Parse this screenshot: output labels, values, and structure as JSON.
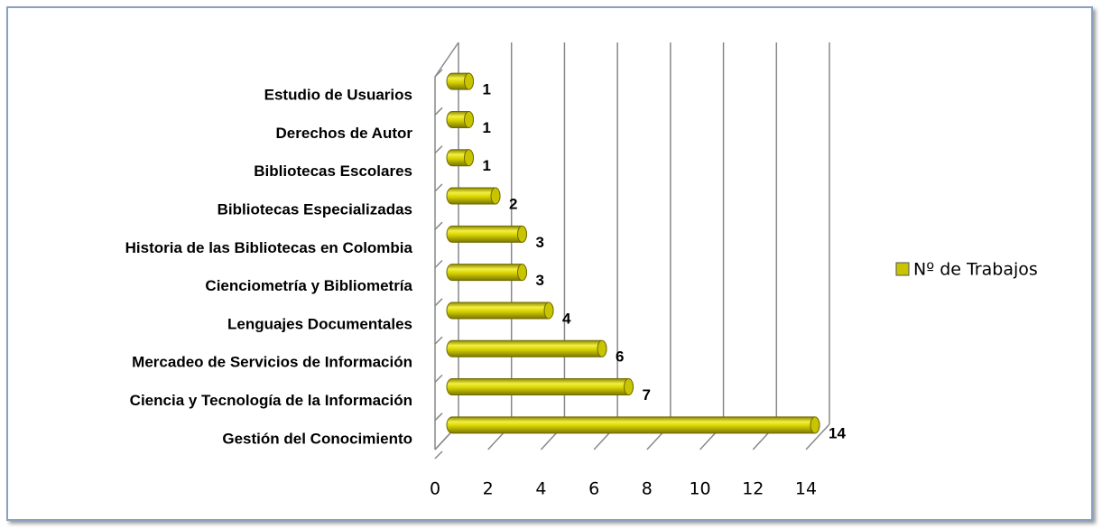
{
  "chart_data": {
    "type": "bar3d_horizontal",
    "categories": [
      "Estudio de Usuarios",
      "Derechos de Autor",
      "Bibliotecas Escolares",
      "Bibliotecas Especializadas",
      "Historia de las Bibliotecas en Colombia",
      "Cienciometría y Bibliometría",
      "Lenguajes Documentales",
      "Mercadeo de Servicios de Información",
      "Ciencia y Tecnología de la Información",
      "Gestión del Conocimiento"
    ],
    "series": [
      {
        "name": "Nº de Trabajos",
        "color": "#c8c400",
        "values": [
          1,
          1,
          1,
          2,
          3,
          3,
          4,
          6,
          7,
          14
        ]
      }
    ],
    "xlim": [
      0,
      14
    ],
    "xticks": [
      0,
      2,
      4,
      6,
      8,
      10,
      12,
      14
    ],
    "grid": true,
    "legend": "right"
  }
}
